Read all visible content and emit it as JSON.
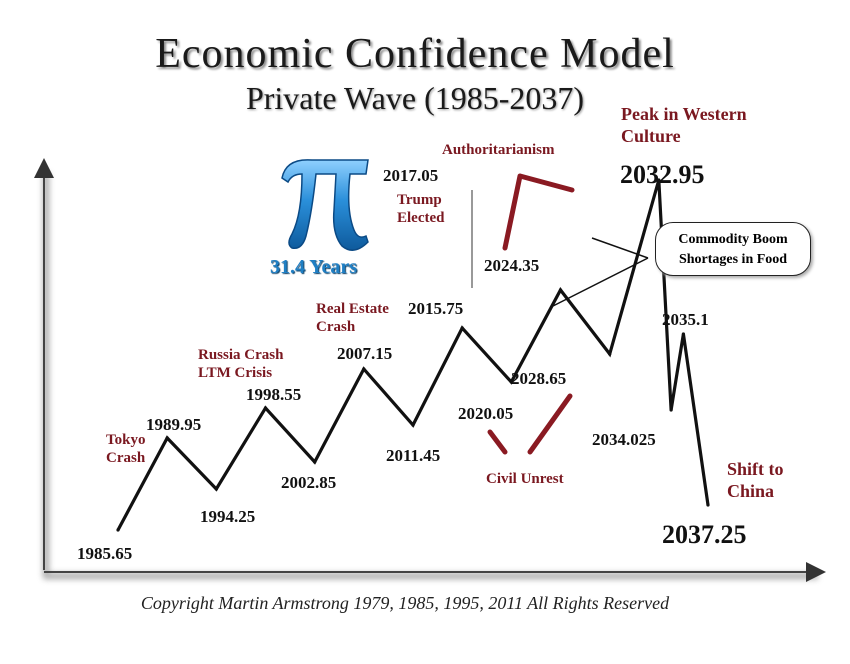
{
  "title": "Economic Confidence Model",
  "subtitle": "Private Wave (1985-2037)",
  "copyright": "Copyright Martin Armstrong 1979, 1985, 1995, 2011 All Rights Reserved",
  "pi_caption": "31.4 Years",
  "callout": [
    "Commodity Boom",
    "Shortages in Food"
  ],
  "colors": {
    "line": "#111111",
    "event_text": "#7a1820",
    "pi": "#1f7fc4",
    "arrow": "#8a1a22"
  },
  "chart_data": {
    "type": "line",
    "title": "Economic Confidence Model",
    "subtitle": "Private Wave (1985-2037)",
    "xlabel": "",
    "ylabel": "",
    "grid": false,
    "series": [
      {
        "points": [
          {
            "x": 1985.65,
            "kind": "trough"
          },
          {
            "x": 1989.95,
            "kind": "peak"
          },
          {
            "x": 1994.25,
            "kind": "trough"
          },
          {
            "x": 1998.55,
            "kind": "peak"
          },
          {
            "x": 2002.85,
            "kind": "trough"
          },
          {
            "x": 2007.15,
            "kind": "peak"
          },
          {
            "x": 2011.45,
            "kind": "trough"
          },
          {
            "x": 2015.75,
            "kind": "peak"
          },
          {
            "x": 2020.05,
            "kind": "trough"
          },
          {
            "x": 2024.35,
            "kind": "peak"
          },
          {
            "x": 2028.65,
            "kind": "trough"
          },
          {
            "x": 2032.95,
            "kind": "peak"
          },
          {
            "x": 2034.025,
            "kind": "trough"
          },
          {
            "x": 2035.1,
            "kind": "peak"
          },
          {
            "x": 2037.25,
            "kind": "trough"
          }
        ]
      }
    ],
    "point_labels": [
      "1985.65",
      "1989.95",
      "1994.25",
      "1998.55",
      "2002.85",
      "2007.15",
      "2011.45",
      "2015.75",
      "2020.05",
      "2024.35",
      "2028.65",
      "2032.95",
      "2034.025",
      "2035.1",
      "2037.25",
      "2017.05"
    ],
    "annotations": [
      {
        "text": "Tokyo Crash",
        "at": "1989.95"
      },
      {
        "text": "Russia Crash LTM Crisis",
        "at": "1998.55"
      },
      {
        "text": "Real Estate Crash",
        "at": "2007.15"
      },
      {
        "text": "Trump Elected",
        "at": "2017.05"
      },
      {
        "text": "Authoritarianism",
        "at": "2024.35"
      },
      {
        "text": "Civil Unrest",
        "at": "2028.65"
      },
      {
        "text": "Peak in Western Culture",
        "at": "2032.95"
      },
      {
        "text": "Shift to China",
        "at": "2037.25"
      }
    ]
  }
}
